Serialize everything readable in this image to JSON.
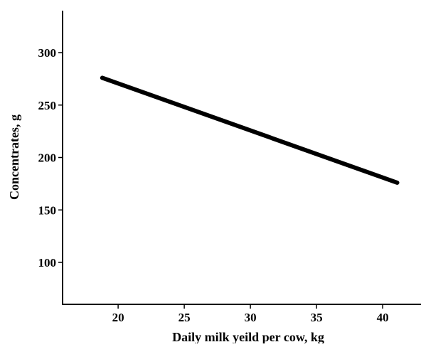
{
  "chart_data": {
    "type": "line",
    "title": "",
    "xlabel": "Daily milk yeild per cow, kg",
    "ylabel": "Concentrates, g",
    "xlim": [
      15.8,
      42.9
    ],
    "ylim": [
      60,
      340
    ],
    "xticks": [
      20,
      25,
      30,
      35,
      40
    ],
    "yticks": [
      100,
      150,
      200,
      250,
      300
    ],
    "grid": false,
    "legend": "none",
    "series": [
      {
        "x": [
          18.8,
          41.1
        ],
        "y": [
          276,
          176
        ],
        "color": "#000000"
      }
    ]
  }
}
